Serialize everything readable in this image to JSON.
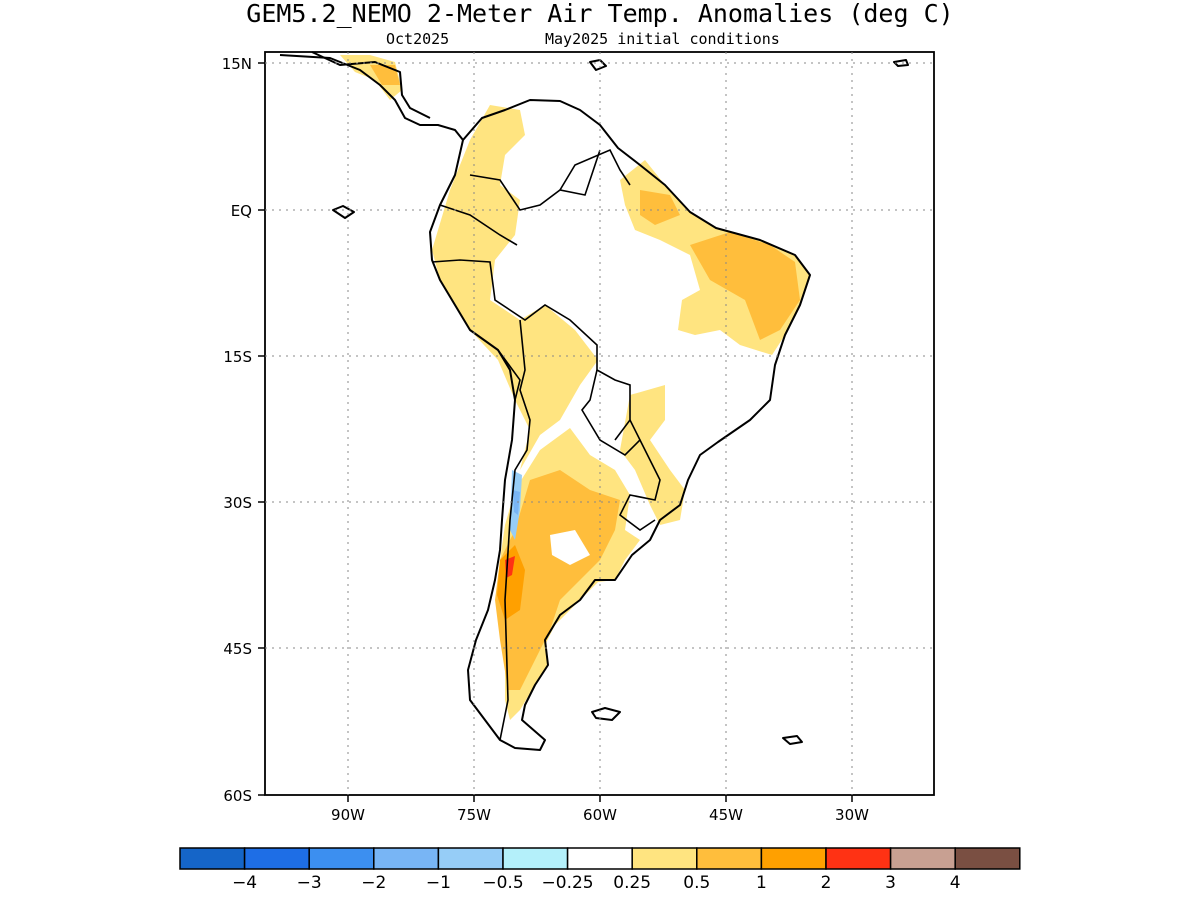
{
  "title": "GEM5.2_NEMO 2-Meter Air Temp. Anomalies (deg C)",
  "subtitle_left": "Oct2025",
  "subtitle_right": "May2025 initial conditions",
  "lat_labels": [
    "15N",
    "EQ",
    "15S",
    "30S",
    "45S",
    "60S"
  ],
  "lon_labels": [
    "90W",
    "75W",
    "60W",
    "45W",
    "30W"
  ],
  "colorbar": {
    "colors": [
      "#1565c8",
      "#1e6ee6",
      "#3c8ff0",
      "#78b5f5",
      "#96cdf7",
      "#b4f0fa",
      "#ffffff",
      "#ffe480",
      "#ffbe3c",
      "#ffa000",
      "#ff3214",
      "#c8a092",
      "#7a4f42"
    ],
    "labels": [
      "−4",
      "−3",
      "−2",
      "−1",
      "−0.5",
      "−0.25",
      "0.25",
      "0.5",
      "1",
      "2",
      "3",
      "4"
    ]
  },
  "map": {
    "extent": {
      "lon": [
        -98,
        -18
      ],
      "lat": [
        -60,
        16
      ]
    },
    "fill_colors": {
      "land": "#ffffff",
      "light_warm": "#ffe480",
      "warm": "#ffbe3c",
      "hot": "#ffa000",
      "hottest": "#ff3214",
      "cool": "#96cdf7",
      "coolest": "#78b5f5"
    }
  }
}
